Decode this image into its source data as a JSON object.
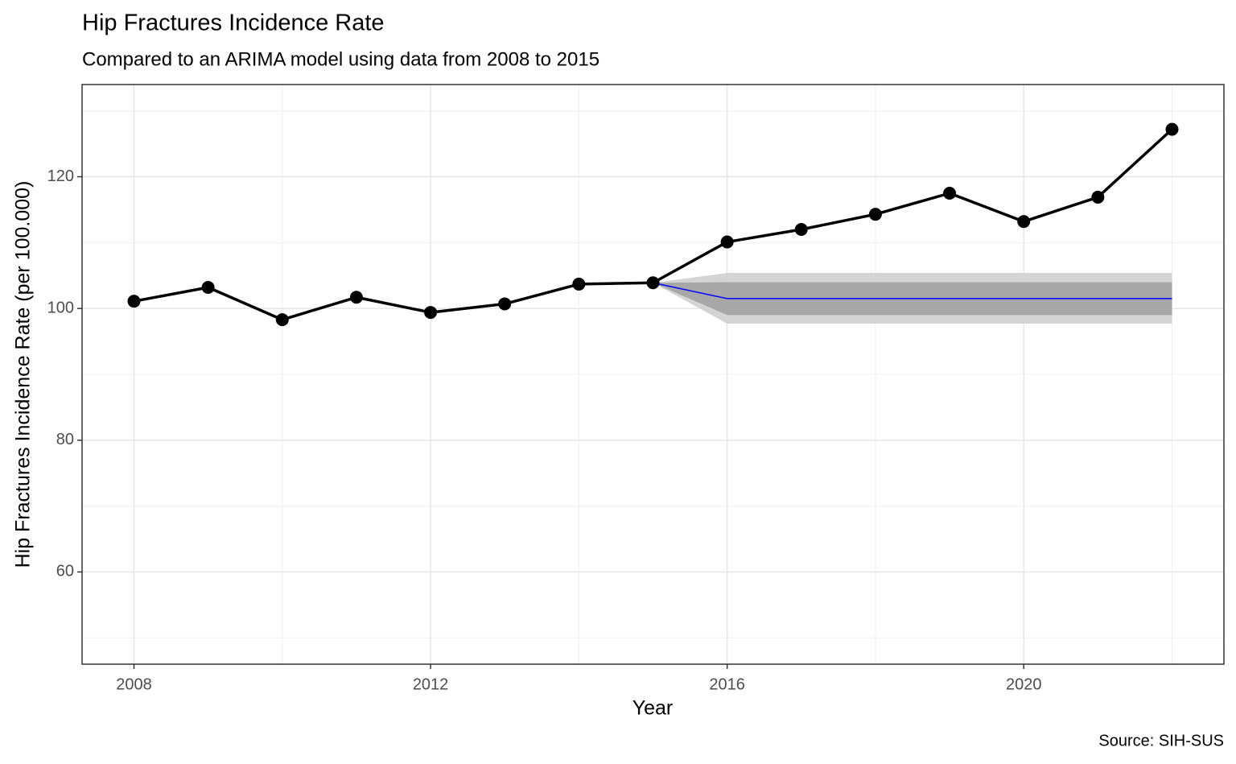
{
  "chart_data": {
    "type": "line",
    "title": "Hip Fractures Incidence Rate",
    "subtitle": "Compared to an ARIMA model using data from 2008 to 2015",
    "x_label": "Year",
    "y_label": "Hip Fractures Incidence Rate (per 100.000)",
    "caption": "Source: SIH-SUS",
    "x": [
      2008,
      2009,
      2010,
      2011,
      2012,
      2013,
      2014,
      2015,
      2016,
      2017,
      2018,
      2019,
      2020,
      2021,
      2022
    ],
    "series": [
      {
        "color": "#000000",
        "values": [
          101.1,
          103.2,
          98.3,
          101.7,
          99.4,
          100.7,
          103.7,
          103.9,
          110.1,
          112.0,
          114.3,
          117.5,
          113.2,
          116.9,
          127.2
        ]
      }
    ],
    "forecast": {
      "x": [
        2015,
        2016,
        2017,
        2018,
        2019,
        2020,
        2021,
        2022
      ],
      "mean": [
        103.9,
        101.5,
        101.5,
        101.5,
        101.5,
        101.5,
        101.5,
        101.5
      ],
      "lo80": [
        103.9,
        99.0,
        99.0,
        99.0,
        99.0,
        99.0,
        99.0,
        99.0
      ],
      "hi80": [
        103.9,
        104.0,
        104.0,
        104.0,
        104.0,
        104.0,
        104.0,
        104.0
      ],
      "lo95": [
        103.9,
        97.7,
        97.7,
        97.7,
        97.7,
        97.7,
        97.7,
        97.7
      ],
      "hi95": [
        103.9,
        105.4,
        105.4,
        105.4,
        105.4,
        105.4,
        105.4,
        105.4
      ],
      "color": "#0000ff",
      "color80": "#a8a8a8",
      "color95": "#d4d4d4"
    },
    "xlim": [
      2007.3,
      2022.7
    ],
    "ylim": [
      46,
      134
    ],
    "xticks": [
      2008,
      2012,
      2016,
      2020
    ],
    "yticks": [
      60,
      80,
      100,
      120
    ],
    "xminor": [
      2010,
      2014,
      2018,
      2022
    ],
    "yminor": [
      50,
      70,
      90,
      110,
      130
    ],
    "grid": true
  }
}
